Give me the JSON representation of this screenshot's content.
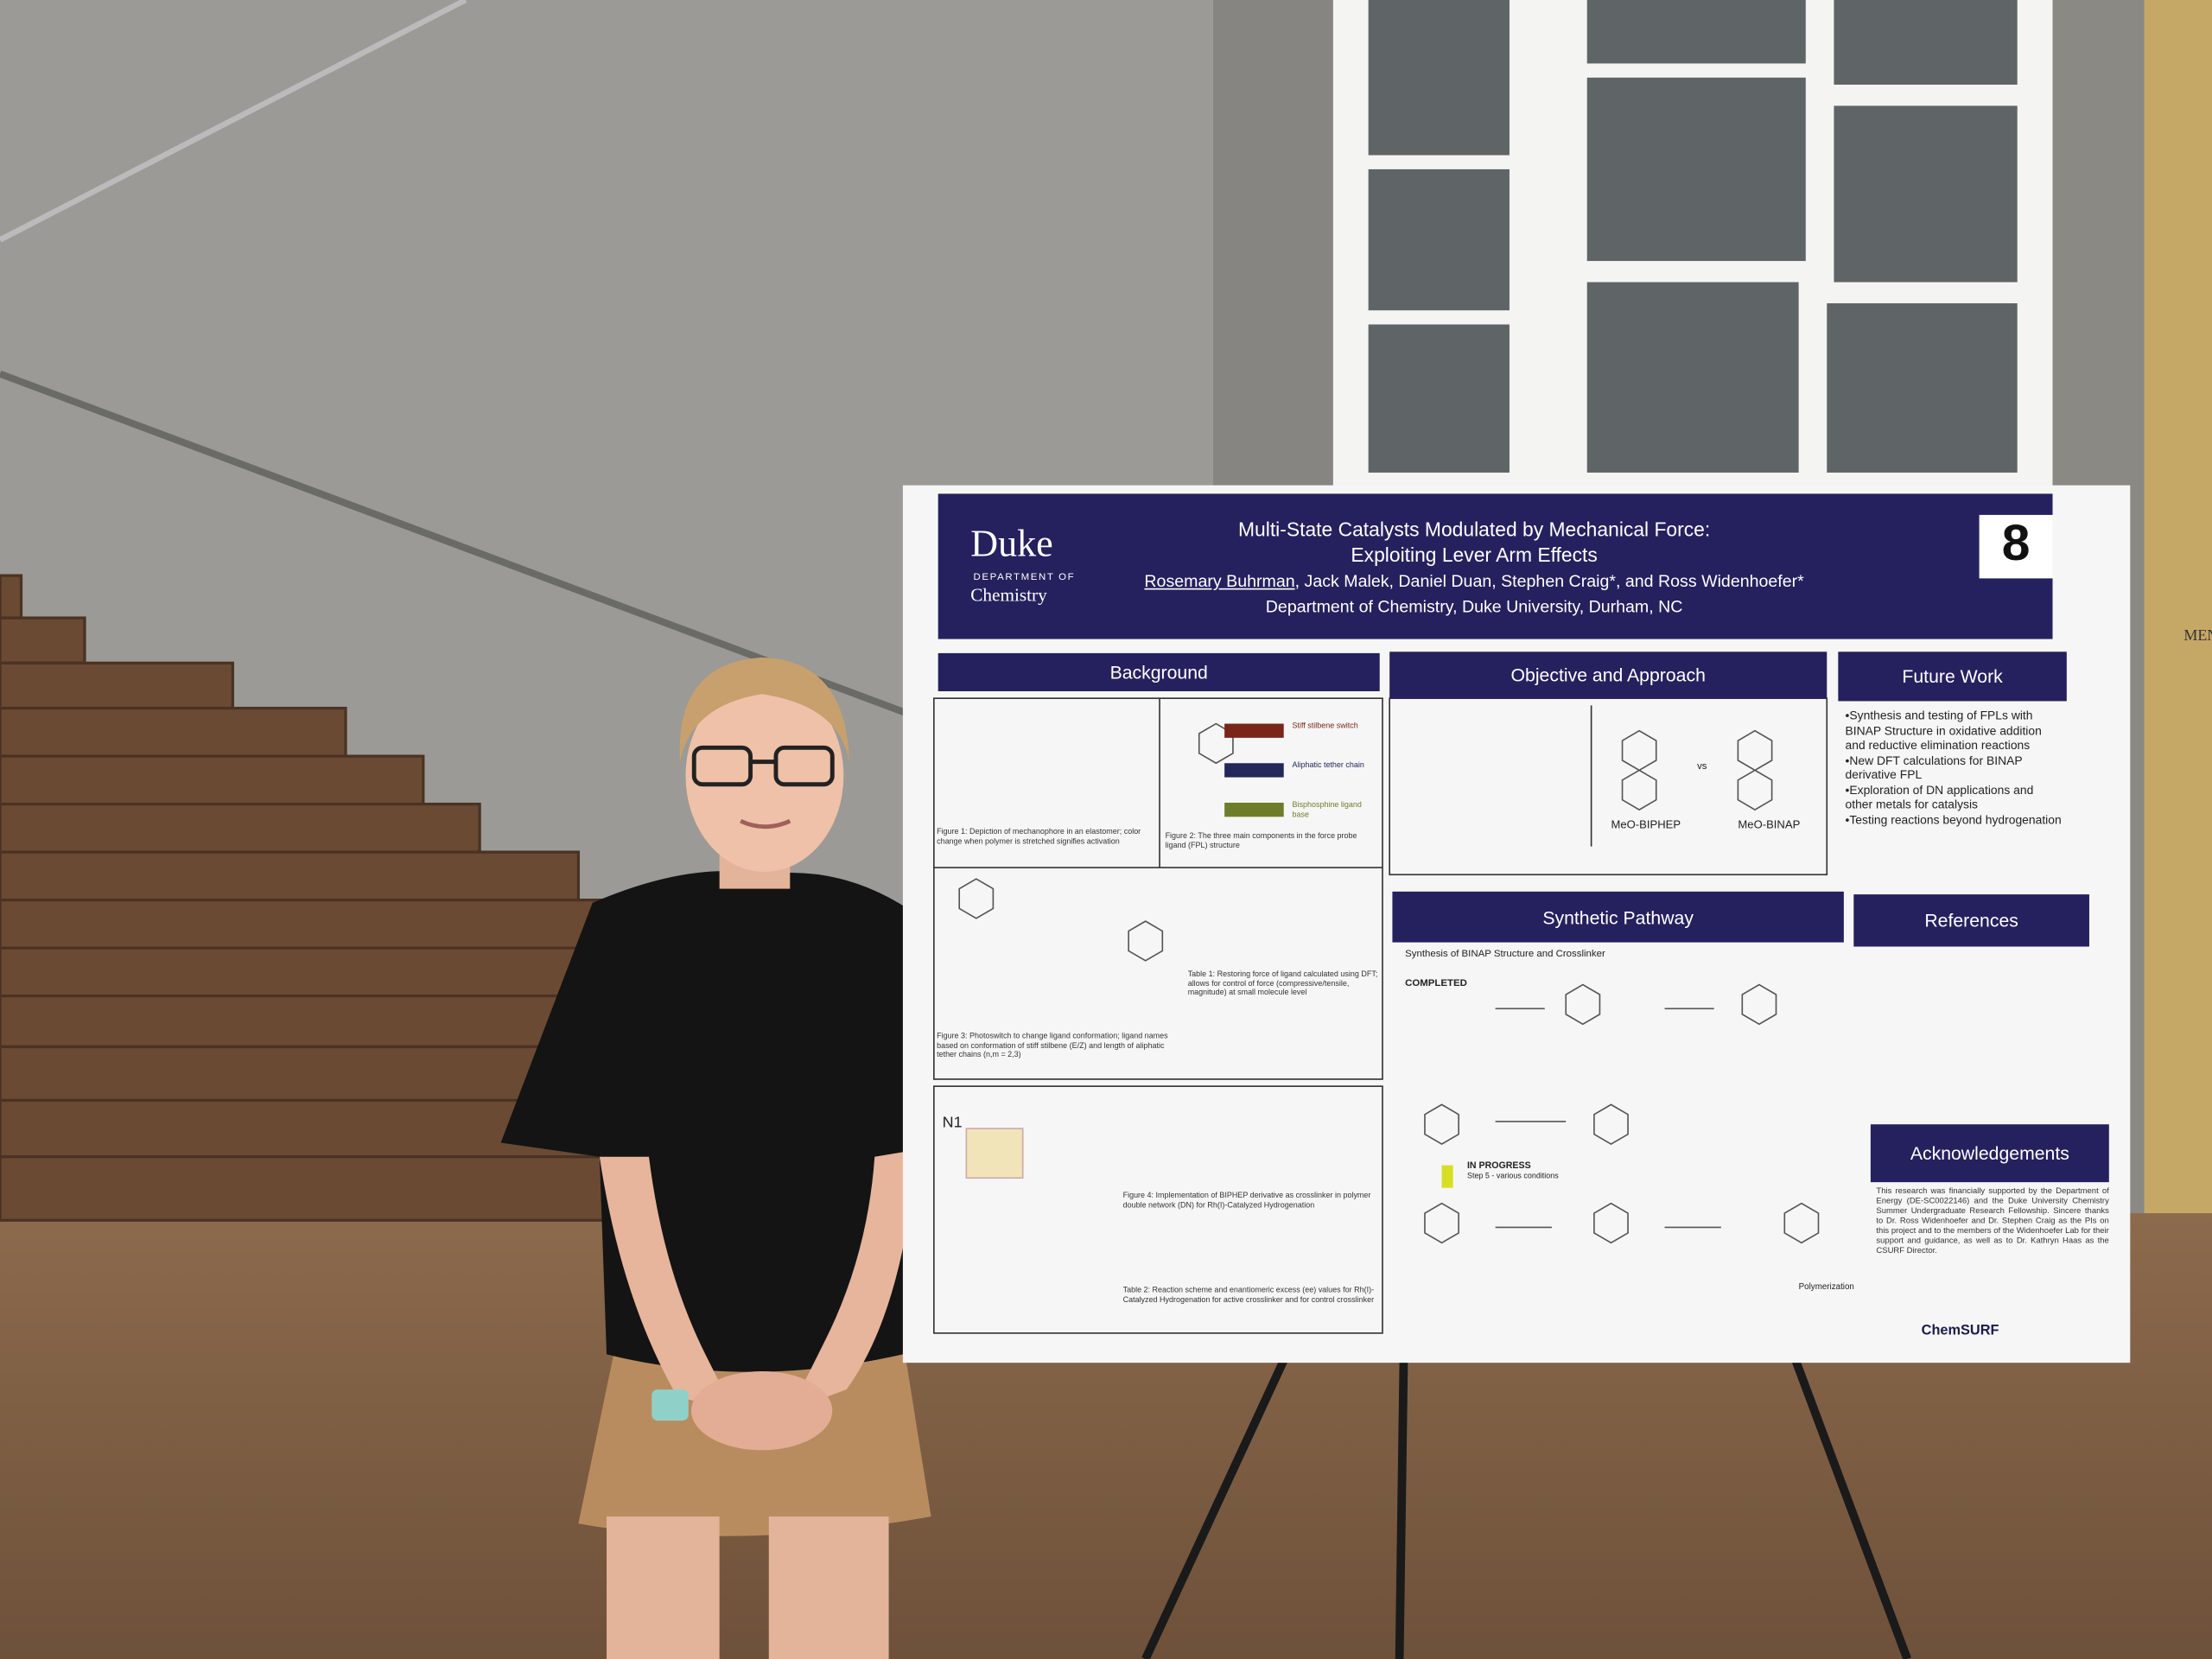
{
  "poster": {
    "logo_name": "Duke",
    "logo_dept": "DEPARTMENT OF",
    "logo_chem": "Chemistry",
    "title_line1": "Multi-State Catalysts Modulated by Mechanical Force:",
    "title_line2": "Exploiting Lever Arm Effects",
    "authors_lead": "Rosemary Buhrman",
    "authors_rest": ", Jack Malek, Daniel Duan, Stephen Craig*, and Ross Widenhoefer*",
    "affiliation": "Department of Chemistry, Duke University, Durham, NC",
    "number": "8"
  },
  "sections": {
    "background": "Background",
    "objective": "Objective and Approach",
    "future_work": "Future Work",
    "synthetic": "Synthetic Pathway",
    "references": "References",
    "acknowledgements": "Acknowledgements"
  },
  "background_panel": {
    "figure1": "Figure 1: Depiction of mechanophore in an elastomer; color change when polymer is stretched signifies activation",
    "figure2": "Figure 2: The three main components in the force probe ligand (FPL) structure",
    "label_stiff": "Stiff stilbene switch",
    "label_tether": "Aliphatic tether chain",
    "label_base": "Bisphosphine ligand base",
    "figure3": "Figure 3: Photoswitch to change ligand conformation; ligand names based on conformation of stiff stilbene (E/Z) and length of aliphatic tether chains (n,m = 2,3)",
    "table1": "Table 1: Restoring force of ligand calculated using DFT; allows for control of force (compressive/tensile, magnitude) at small molecule level",
    "figure4": "Figure 4: Implementation of BIPHEP derivative as crosslinker in polymer double network (DN) for Rh(I)-Catalyzed Hydrogenation",
    "table2": "Table 2: Reaction scheme and enantiomeric excess (ee) values for Rh(I)-Catalyzed Hydrogenation for active crosslinker and for control crosslinker",
    "n1": "N1"
  },
  "objective_panel": {
    "left": "MeO-BIPHEP",
    "vs": "vs",
    "right": "MeO-BINAP"
  },
  "future_work": [
    "•Synthesis and testing of FPLs with BINAP Structure in oxidative addition and reductive elimination reactions",
    "•New DFT calculations for BINAP derivative FPL",
    "•Exploration of DN applications and other metals for catalysis",
    "•Testing reactions beyond hydrogenation"
  ],
  "synthetic_panel": {
    "subtitle": "Synthesis of BINAP Structure and Crosslinker",
    "completed": "COMPLETED",
    "in_progress": "IN PROGRESS",
    "step5": "Step 5 - various conditions",
    "polymerization": "Polymerization"
  },
  "acknowledgements_text": "This research was financially supported by the Department of Energy (DE-SC0022146) and the Duke University Chemistry Summer Undergraduate Research Fellowship. Sincere thanks to Dr. Ross Widenhoefer and Dr. Stephen Craig as the PIs on this project and to the members of the Widenhoefer Lab for their support and guidance, as well as to Dr. Kathryn Haas as the CSURF Director.",
  "footer_logo": "ChemSURF",
  "wall_sign": "MEN"
}
